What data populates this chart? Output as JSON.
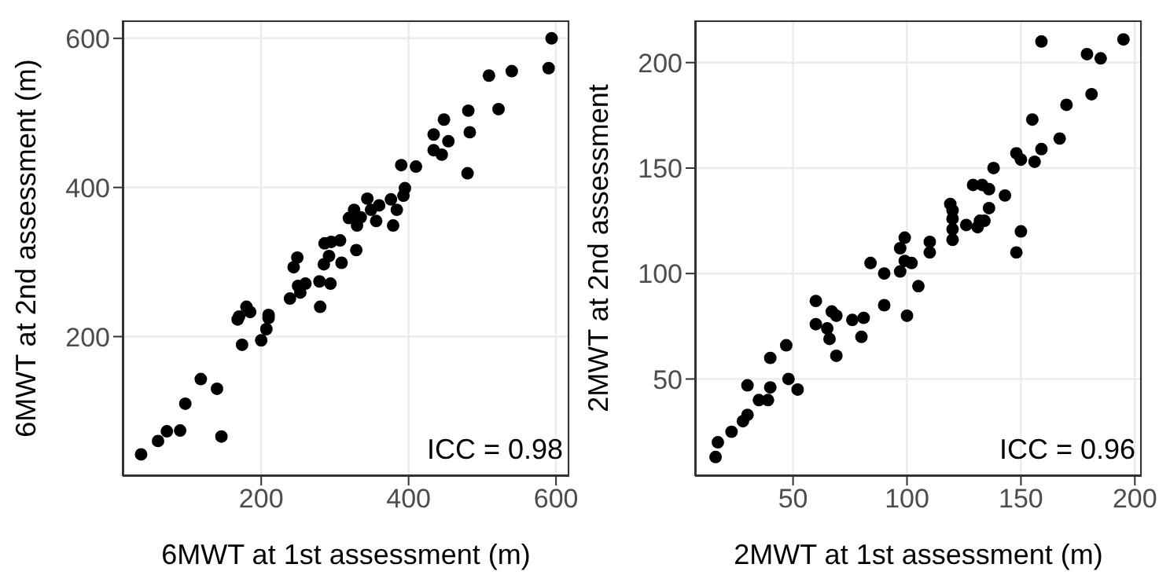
{
  "chart_data": [
    {
      "type": "scatter",
      "xlabel": "6MWT at 1st assessment (m)",
      "ylabel": "6MWT at 2nd assessment (m)",
      "xlim": [
        12,
        618
      ],
      "ylim": [
        13,
        624
      ],
      "xticks": [
        200,
        400,
        600
      ],
      "yticks": [
        200,
        400,
        600
      ],
      "grid": true,
      "marker": "circle",
      "annotations": [
        "ICC = 0.98"
      ],
      "series": [
        {
          "color": "#000000",
          "x": [
            37,
            60,
            72,
            90,
            97,
            118,
            140,
            146,
            168,
            170,
            174,
            180,
            185,
            200,
            207,
            210,
            210,
            239,
            244,
            249,
            250,
            253,
            260,
            279,
            280,
            285,
            286,
            292,
            294,
            295,
            307,
            309,
            319,
            326,
            329,
            330,
            335,
            344,
            349,
            356,
            360,
            376,
            379,
            384,
            390,
            393,
            395,
            410,
            434,
            434,
            448,
            445,
            454,
            481,
            480,
            483,
            509,
            522,
            540,
            590,
            594
          ],
          "values": [
            42,
            60,
            73,
            74,
            110,
            143,
            130,
            66,
            223,
            227,
            189,
            240,
            233,
            195,
            210,
            225,
            229,
            251,
            293,
            306,
            268,
            259,
            271,
            274,
            240,
            297,
            325,
            308,
            271,
            327,
            329,
            299,
            359,
            370,
            316,
            349,
            360,
            385,
            370,
            355,
            376,
            384,
            349,
            370,
            430,
            389,
            399,
            428,
            471,
            450,
            491,
            444,
            462,
            503,
            419,
            474,
            550,
            505,
            556,
            560,
            600
          ]
        }
      ]
    },
    {
      "type": "scatter",
      "xlabel": "2MWT at 1st assessment (m)",
      "ylabel": "2MWT at 2nd assessment",
      "xlim": [
        7,
        203
      ],
      "ylim": [
        4,
        220
      ],
      "xticks": [
        50,
        100,
        150,
        200
      ],
      "yticks": [
        50,
        100,
        150,
        200
      ],
      "grid": true,
      "marker": "circle",
      "annotations": [
        "ICC = 0.96"
      ],
      "series": [
        {
          "color": "#000000",
          "x": [
            16,
            17,
            23,
            28,
            30,
            30,
            35,
            39,
            40,
            40,
            47,
            48,
            52,
            60,
            60,
            65,
            66,
            67,
            69,
            69,
            76,
            81,
            80,
            84,
            90,
            90,
            97,
            97,
            99,
            99,
            100,
            102,
            105,
            110,
            110,
            119,
            120,
            120,
            120,
            120,
            126,
            132,
            134,
            131,
            129,
            133,
            136,
            143,
            136,
            138,
            148,
            150,
            156,
            159,
            155,
            167,
            170,
            181,
            179,
            185,
            159,
            195,
            150,
            148
          ],
          "values": [
            13,
            20,
            25,
            30,
            33,
            47,
            40,
            40,
            46,
            60,
            66,
            50,
            45,
            87,
            76,
            74,
            69,
            82,
            61,
            80,
            78,
            79,
            70,
            105,
            100,
            85,
            112,
            101,
            117,
            106,
            80,
            105,
            94,
            115,
            110,
            133,
            130,
            126,
            121,
            116,
            123,
            125,
            125,
            122,
            142,
            142,
            140,
            137,
            131,
            150,
            157,
            154,
            153,
            159,
            173,
            164,
            180,
            185,
            204,
            202,
            210,
            211,
            120,
            110
          ]
        }
      ]
    }
  ]
}
